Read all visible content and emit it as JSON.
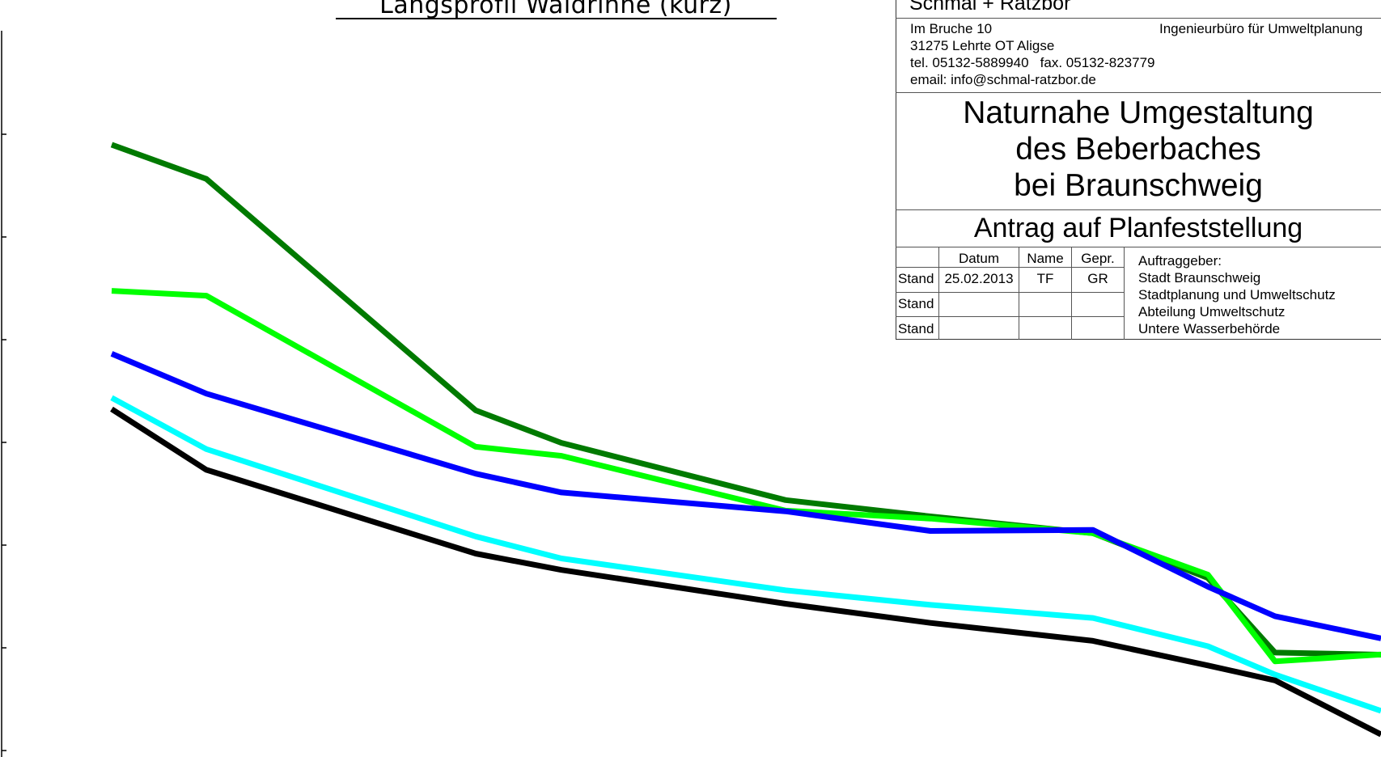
{
  "chart_data": {
    "type": "line",
    "title": "Längsprofil Waldrinne (kurz)",
    "xlabel": "",
    "ylabel": "",
    "x": [
      0,
      1,
      2,
      3,
      4,
      5,
      6,
      7,
      8,
      9
    ],
    "series": [
      {
        "color": "#007a00",
        "values": [
          72.06,
          69.71,
          53.81,
          51.58,
          47.65,
          46.53,
          45.37,
          42.3,
          37.17,
          37.03
        ]
      },
      {
        "color": "#00ff00",
        "values": [
          62.02,
          61.69,
          51.31,
          50.69,
          46.92,
          46.38,
          45.37,
          42.53,
          36.57,
          37.04
        ]
      },
      {
        "color": "#0000ff",
        "values": [
          57.7,
          54.96,
          49.46,
          48.17,
          46.88,
          45.53,
          45.6,
          41.7,
          39.67,
          38.15
        ]
      },
      {
        "color": "#00ffff",
        "values": [
          54.68,
          51.15,
          45.15,
          43.64,
          41.45,
          40.45,
          39.55,
          37.61,
          35.66,
          33.17
        ]
      },
      {
        "color": "#000000",
        "values": [
          53.9,
          49.73,
          43.97,
          42.85,
          40.53,
          39.21,
          37.98,
          36.29,
          35.26,
          31.55
        ]
      }
    ],
    "xlim": [
      0,
      9
    ],
    "ylim": [
      30,
      82
    ],
    "grid": false,
    "legend": "none"
  },
  "titleblock": {
    "company": "Schmal + Ratzbor",
    "address1": "Im Bruche 10",
    "address2": "31275 Lehrte OT Aligse",
    "phone": "tel. 05132-5889940   fax. 05132-823779",
    "email": "email: info@schmal-ratzbor.de",
    "office_type": "Ingenieurbüro für Umweltplanung",
    "project_lines": [
      "Naturnahe Umgestaltung",
      "des Beberbaches",
      "bei Braunschweig"
    ],
    "application": "Antrag auf Planfeststellung",
    "table_headers": {
      "datum": "Datum",
      "name": "Name",
      "gepr": "Gepr."
    },
    "rows": [
      {
        "label": "Stand",
        "datum": "25.02.2013",
        "name": "TF",
        "gepr": "GR"
      },
      {
        "label": "Stand",
        "datum": "",
        "name": "",
        "gepr": ""
      },
      {
        "label": "Stand",
        "datum": "",
        "name": "",
        "gepr": ""
      }
    ],
    "client_label": "Auftraggeber:",
    "client_lines": [
      "Stadt Braunschweig",
      "Stadtplanung und Umweltschutz",
      "Abteilung Umweltschutz",
      "Untere Wasserbehörde"
    ]
  }
}
